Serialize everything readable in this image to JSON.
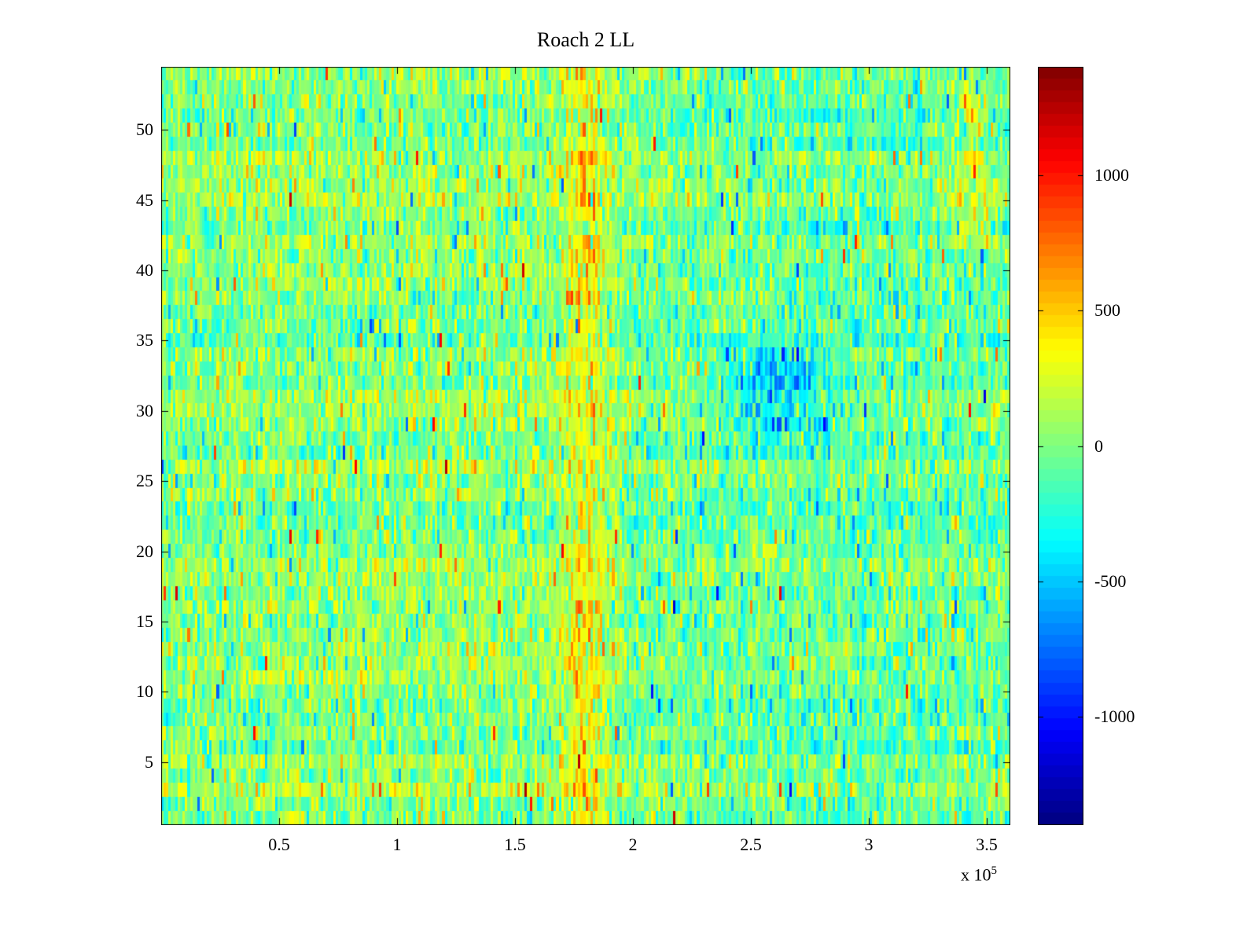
{
  "title": "Roach 2 LL",
  "axes": {
    "x_tick_labels": [
      "0.5",
      "1",
      "1.5",
      "2",
      "2.5",
      "3",
      "3.5"
    ],
    "x_tick_values": [
      50000,
      100000,
      150000,
      200000,
      250000,
      300000,
      350000
    ],
    "x_exponent_text": "x 10",
    "x_exponent_power": "5",
    "y_tick_labels": [
      "5",
      "10",
      "15",
      "20",
      "25",
      "30",
      "35",
      "40",
      "45",
      "50"
    ],
    "y_tick_values": [
      5,
      10,
      15,
      20,
      25,
      30,
      35,
      40,
      45,
      50
    ]
  },
  "colorbar": {
    "tick_labels": [
      "1000",
      "500",
      "0",
      "-500",
      "-1000"
    ],
    "tick_values": [
      1000,
      500,
      0,
      -500,
      -1000
    ],
    "min": -1400,
    "max": 1400,
    "colormap": "jet"
  },
  "chart_data": {
    "type": "heatmap",
    "title": "Roach 2 LL",
    "xlabel": "",
    "ylabel": "",
    "x_range": [
      0,
      360000
    ],
    "x_scale_exponent": 5,
    "y_range": [
      0.5,
      54.5
    ],
    "rows": 54,
    "columns": 350,
    "color_range": [
      -1400,
      1400
    ],
    "colormap": "jet",
    "grid": false,
    "legend": "colorbar-right",
    "background_noise": {
      "mean": 0,
      "std": 195,
      "row_bias_std": 55,
      "warm_spike_fraction": 0.007,
      "cool_spike_fraction": 0.006,
      "seed": 1337
    },
    "features": [
      {
        "name": "warm-vertical-streak-center",
        "x_center": 180000,
        "x_sigma": 7000,
        "y_min": 1,
        "y_max": 54,
        "amplitude": 330
      },
      {
        "name": "warm-streak-upper-right",
        "x_center": 344000,
        "x_sigma": 5000,
        "y_min": 42,
        "y_max": 52,
        "amplitude": 260
      },
      {
        "name": "cool-patch-rows-29-34",
        "x_center": 262000,
        "x_sigma": 14000,
        "y_min": 29,
        "y_max": 34,
        "amplitude": -420
      },
      {
        "name": "cool-right-half",
        "x_center": 290000,
        "x_sigma": 60000,
        "y_min": 1,
        "y_max": 54,
        "amplitude": -70
      },
      {
        "name": "warm-mid-left",
        "x_center": 110000,
        "x_sigma": 70000,
        "y_min": 1,
        "y_max": 54,
        "amplitude": 45
      }
    ]
  }
}
